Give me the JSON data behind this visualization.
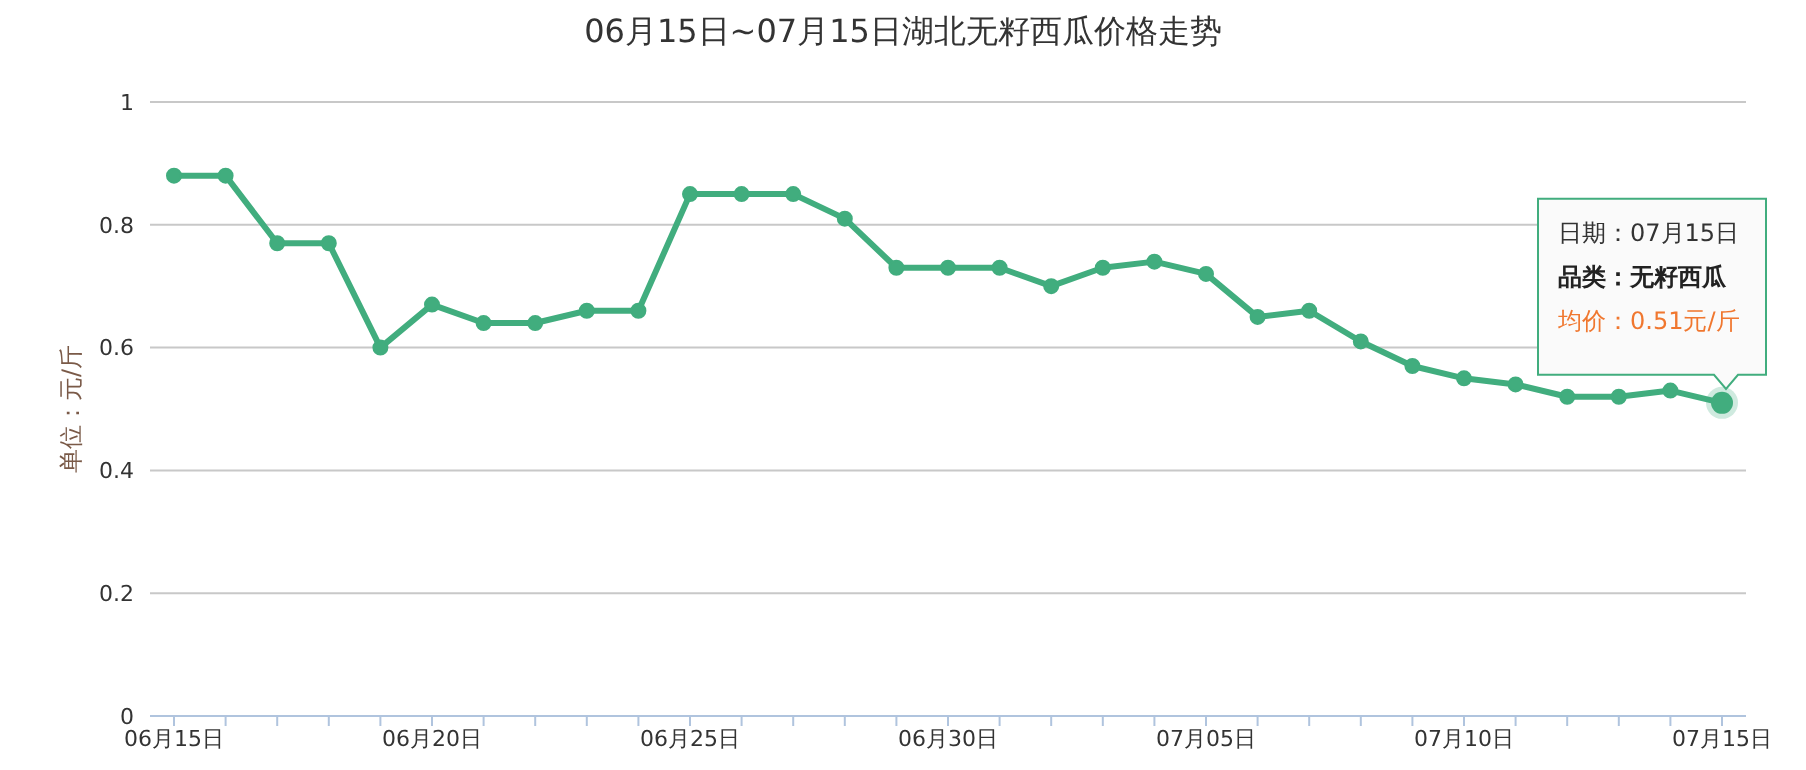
{
  "chart_data": {
    "type": "line",
    "title": "06月15日~07月15日湖北无籽西瓜价格走势",
    "ylabel": "单位：元/斤",
    "categories": [
      "06月15日",
      null,
      null,
      null,
      null,
      "06月20日",
      null,
      null,
      null,
      null,
      "06月25日",
      null,
      null,
      null,
      null,
      "06月30日",
      null,
      null,
      null,
      null,
      "07月05日",
      null,
      null,
      null,
      null,
      "07月10日",
      null,
      null,
      null,
      null,
      "07月15日"
    ],
    "series": [
      {
        "color": "#41ad7e",
        "values": [
          0.88,
          0.88,
          0.77,
          0.77,
          0.6,
          0.67,
          0.64,
          0.64,
          0.66,
          0.66,
          0.85,
          0.85,
          0.85,
          0.81,
          0.73,
          0.73,
          0.73,
          0.7,
          0.73,
          0.74,
          0.72,
          0.65,
          0.66,
          0.61,
          0.57,
          0.55,
          0.54,
          0.52,
          0.52,
          0.53,
          0.51
        ]
      }
    ],
    "ylim": [
      0,
      1
    ],
    "yticks": [
      0,
      0.2,
      0.4,
      0.6,
      0.8,
      1
    ],
    "grid": "y",
    "legend": false,
    "marker": "circle",
    "line_style": "solid",
    "annotations": [
      "日期：07月15日",
      "品类：无籽西瓜",
      "均价：0.51元/斤"
    ]
  }
}
